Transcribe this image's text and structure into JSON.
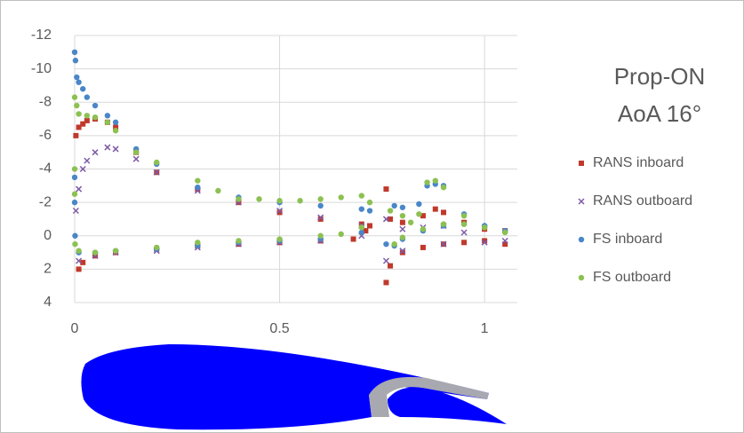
{
  "chart_data": {
    "type": "scatter",
    "title_lines": [
      "Prop-ON",
      "AoA 16°"
    ],
    "xlim": [
      0,
      1.08
    ],
    "xticks": [
      0,
      0.5,
      1
    ],
    "ylim": [
      -12,
      4
    ],
    "yticks": [
      -12,
      -10,
      -8,
      -6,
      -4,
      -2,
      0,
      2,
      4
    ],
    "y_reversed": true,
    "grid": true,
    "series": [
      {
        "name": "RANS inboard",
        "color": "#c0392b",
        "marker": "square",
        "x": [
          0.003,
          0.01,
          0.02,
          0.03,
          0.05,
          0.08,
          0.1,
          0.15,
          0.2,
          0.3,
          0.4,
          0.5,
          0.6,
          0.7,
          0.72,
          0.01,
          0.02,
          0.05,
          0.1,
          0.2,
          0.3,
          0.4,
          0.5,
          0.6,
          0.68,
          0.71,
          0.76,
          0.77,
          0.8,
          0.85,
          0.88,
          0.9,
          0.95,
          1.0,
          1.05,
          0.76,
          0.77,
          0.8,
          0.85,
          0.9,
          0.95,
          1.0,
          1.05
        ],
        "values": [
          -6,
          -6.5,
          -6.7,
          -6.9,
          -7,
          -6.8,
          -6.5,
          -5,
          -3.8,
          -2.8,
          -2,
          -1.4,
          -1,
          -0.7,
          -0.6,
          2,
          1.6,
          1.2,
          1,
          0.8,
          0.6,
          0.5,
          0.4,
          0.3,
          0.2,
          -0.3,
          -2.8,
          -1,
          -0.8,
          -1.2,
          -1.6,
          -1.4,
          -0.8,
          -0.4,
          -0.3,
          2.8,
          1.8,
          1,
          0.7,
          0.5,
          0.4,
          0.3,
          0.5
        ]
      },
      {
        "name": "RANS outboard",
        "color": "#7d5ba6",
        "marker": "cross",
        "x": [
          0.003,
          0.01,
          0.02,
          0.03,
          0.05,
          0.08,
          0.1,
          0.15,
          0.2,
          0.3,
          0.4,
          0.5,
          0.6,
          0.7,
          0.01,
          0.05,
          0.1,
          0.2,
          0.3,
          0.4,
          0.5,
          0.6,
          0.7,
          0.76,
          0.8,
          0.85,
          0.9,
          0.95,
          1.05,
          0.76,
          0.8,
          0.9,
          1.0
        ],
        "values": [
          -1.5,
          -2.8,
          -4,
          -4.5,
          -5,
          -5.3,
          -5.2,
          -4.6,
          -3.8,
          -2.7,
          -2,
          -1.5,
          -1.1,
          -0.6,
          1.5,
          1.2,
          1,
          0.9,
          0.7,
          0.5,
          0.4,
          0.3,
          0,
          -1,
          -0.4,
          -0.5,
          -0.6,
          -0.2,
          0.3,
          1.5,
          0.9,
          0.5,
          0.4
        ]
      },
      {
        "name": "FS inboard",
        "color": "#4a86c8",
        "marker": "circle",
        "x": [
          0,
          0.002,
          0.005,
          0.01,
          0.02,
          0.03,
          0.05,
          0.08,
          0.1,
          0.15,
          0.2,
          0.3,
          0.4,
          0.5,
          0.6,
          0.7,
          0.72,
          0,
          0,
          0.001,
          0.01,
          0.05,
          0.1,
          0.2,
          0.3,
          0.4,
          0.5,
          0.6,
          0.7,
          0.76,
          0.78,
          0.8,
          0.84,
          0.86,
          0.88,
          0.9,
          0.95,
          1.0,
          1.05,
          0.78,
          0.8,
          0.85,
          0.9,
          0.95,
          1.0
        ],
        "values": [
          -11,
          -10.5,
          -9.5,
          -9.2,
          -8.8,
          -8.3,
          -7.8,
          -7.2,
          -6.8,
          -5.2,
          -4.3,
          -2.9,
          -2.3,
          -2,
          -1.8,
          -1.6,
          -1.5,
          -3.5,
          -2,
          0,
          1,
          1,
          0.9,
          0.8,
          0.6,
          0.4,
          0.3,
          0.2,
          -0.2,
          0.5,
          -1.8,
          -1.7,
          -1.9,
          -3,
          -3.1,
          -3,
          -1.3,
          -0.6,
          -0.3,
          0.6,
          0.2,
          -0.3,
          -0.6,
          -0.7,
          -0.6
        ]
      },
      {
        "name": "FS outboard",
        "color": "#8cc152",
        "marker": "circle",
        "x": [
          0,
          0.005,
          0.01,
          0.03,
          0.05,
          0.08,
          0.1,
          0.15,
          0.2,
          0.3,
          0.35,
          0.4,
          0.45,
          0.5,
          0.55,
          0.6,
          0.65,
          0.7,
          0.72,
          0,
          0,
          0.001,
          0.01,
          0.05,
          0.1,
          0.2,
          0.3,
          0.4,
          0.5,
          0.6,
          0.65,
          0.7,
          0.77,
          0.8,
          0.82,
          0.84,
          0.86,
          0.88,
          0.9,
          0.95,
          1.0,
          1.05,
          0.78,
          0.8,
          0.85,
          0.9,
          0.95,
          1.0
        ],
        "values": [
          -8.3,
          -7.8,
          -7.3,
          -7.2,
          -7.1,
          -6.8,
          -6.3,
          -5,
          -4.4,
          -3.3,
          -2.7,
          -2.2,
          -2.2,
          -2.1,
          -2.1,
          -2.2,
          -2.3,
          -2.4,
          -2,
          -4,
          -2.5,
          0.5,
          0.9,
          1,
          0.9,
          0.7,
          0.4,
          0.3,
          0.2,
          0,
          -0.1,
          -0.5,
          -1.5,
          -1.2,
          -0.8,
          -1.3,
          -3.2,
          -3.3,
          -2.9,
          -1.2,
          -0.5,
          -0.2,
          0.5,
          0.1,
          -0.4,
          -0.7,
          -0.7,
          -0.5
        ]
      }
    ]
  }
}
